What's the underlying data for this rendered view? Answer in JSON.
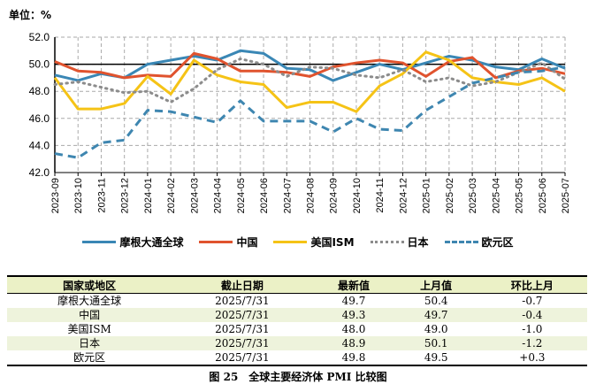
{
  "chart_data": {
    "type": "line",
    "unit_label": "单位：%",
    "categories": [
      "2023-09",
      "2023-10",
      "2023-11",
      "2023-12",
      "2024-01",
      "2024-02",
      "2024-03",
      "2024-04",
      "2024-05",
      "2024-06",
      "2024-07",
      "2024-08",
      "2024-09",
      "2024-10",
      "2024-11",
      "2024-12",
      "2025-01",
      "2025-02",
      "2025-03",
      "2025-04",
      "2025-05",
      "2025-06",
      "2025-07"
    ],
    "ylim": [
      42,
      52
    ],
    "yticks": [
      "42.0",
      "44.0",
      "46.0",
      "48.0",
      "50.0",
      "52.0"
    ],
    "reference_line": 50,
    "grid": true,
    "legend_position": "bottom",
    "series": [
      {
        "name": "摩根大通全球",
        "color": "#3a87b5",
        "style": "solid",
        "values": [
          49.2,
          48.8,
          49.3,
          49.0,
          50.0,
          50.3,
          50.6,
          50.3,
          51.0,
          50.8,
          49.7,
          49.6,
          48.8,
          49.4,
          50.0,
          49.6,
          50.1,
          50.6,
          50.3,
          49.8,
          49.6,
          50.4,
          49.7
        ]
      },
      {
        "name": "中国",
        "color": "#e0532e",
        "style": "solid",
        "values": [
          50.2,
          49.5,
          49.4,
          49.0,
          49.2,
          49.1,
          50.8,
          50.4,
          49.5,
          49.5,
          49.4,
          49.1,
          49.8,
          50.1,
          50.3,
          50.1,
          49.1,
          50.2,
          50.5,
          49.0,
          49.5,
          49.7,
          49.3
        ]
      },
      {
        "name": "美国ISM",
        "color": "#f5c316",
        "style": "solid",
        "values": [
          49.0,
          46.7,
          46.7,
          47.1,
          49.1,
          47.8,
          50.3,
          49.2,
          48.7,
          48.5,
          46.8,
          47.2,
          47.2,
          46.5,
          48.4,
          49.3,
          50.9,
          50.3,
          49.0,
          48.7,
          48.5,
          49.0,
          48.0
        ]
      },
      {
        "name": "日本",
        "color": "#8c8c8c",
        "style": "dotted",
        "values": [
          48.5,
          48.7,
          48.3,
          47.9,
          48.0,
          47.2,
          48.2,
          49.6,
          50.4,
          50.0,
          49.1,
          49.8,
          49.7,
          49.2,
          49.0,
          49.6,
          48.7,
          49.0,
          48.4,
          48.7,
          49.4,
          50.1,
          48.9
        ]
      },
      {
        "name": "欧元区",
        "color": "#3e86b0",
        "style": "dashed",
        "values": [
          43.4,
          43.1,
          44.2,
          44.4,
          46.6,
          46.5,
          46.1,
          45.7,
          47.3,
          45.8,
          45.8,
          45.8,
          45.0,
          46.0,
          45.2,
          45.1,
          46.6,
          47.6,
          48.6,
          49.0,
          49.4,
          49.5,
          49.8
        ]
      }
    ]
  },
  "table": {
    "headers": [
      "国家或地区",
      "截止日期",
      "最新值",
      "上月值",
      "环比上月"
    ],
    "rows": [
      [
        "摩根大通全球",
        "2025/7/31",
        "49.7",
        "50.4",
        "-0.7"
      ],
      [
        "中国",
        "2025/7/31",
        "49.3",
        "49.7",
        "-0.4"
      ],
      [
        "美国ISM",
        "2025/7/31",
        "48.0",
        "49.0",
        "-1.0"
      ],
      [
        "日本",
        "2025/7/31",
        "48.9",
        "50.1",
        "-1.2"
      ],
      [
        "欧元区",
        "2025/7/31",
        "49.8",
        "49.5",
        "+0.3"
      ]
    ]
  },
  "caption": "图 25　全球主要经济体 PMI 比较图"
}
